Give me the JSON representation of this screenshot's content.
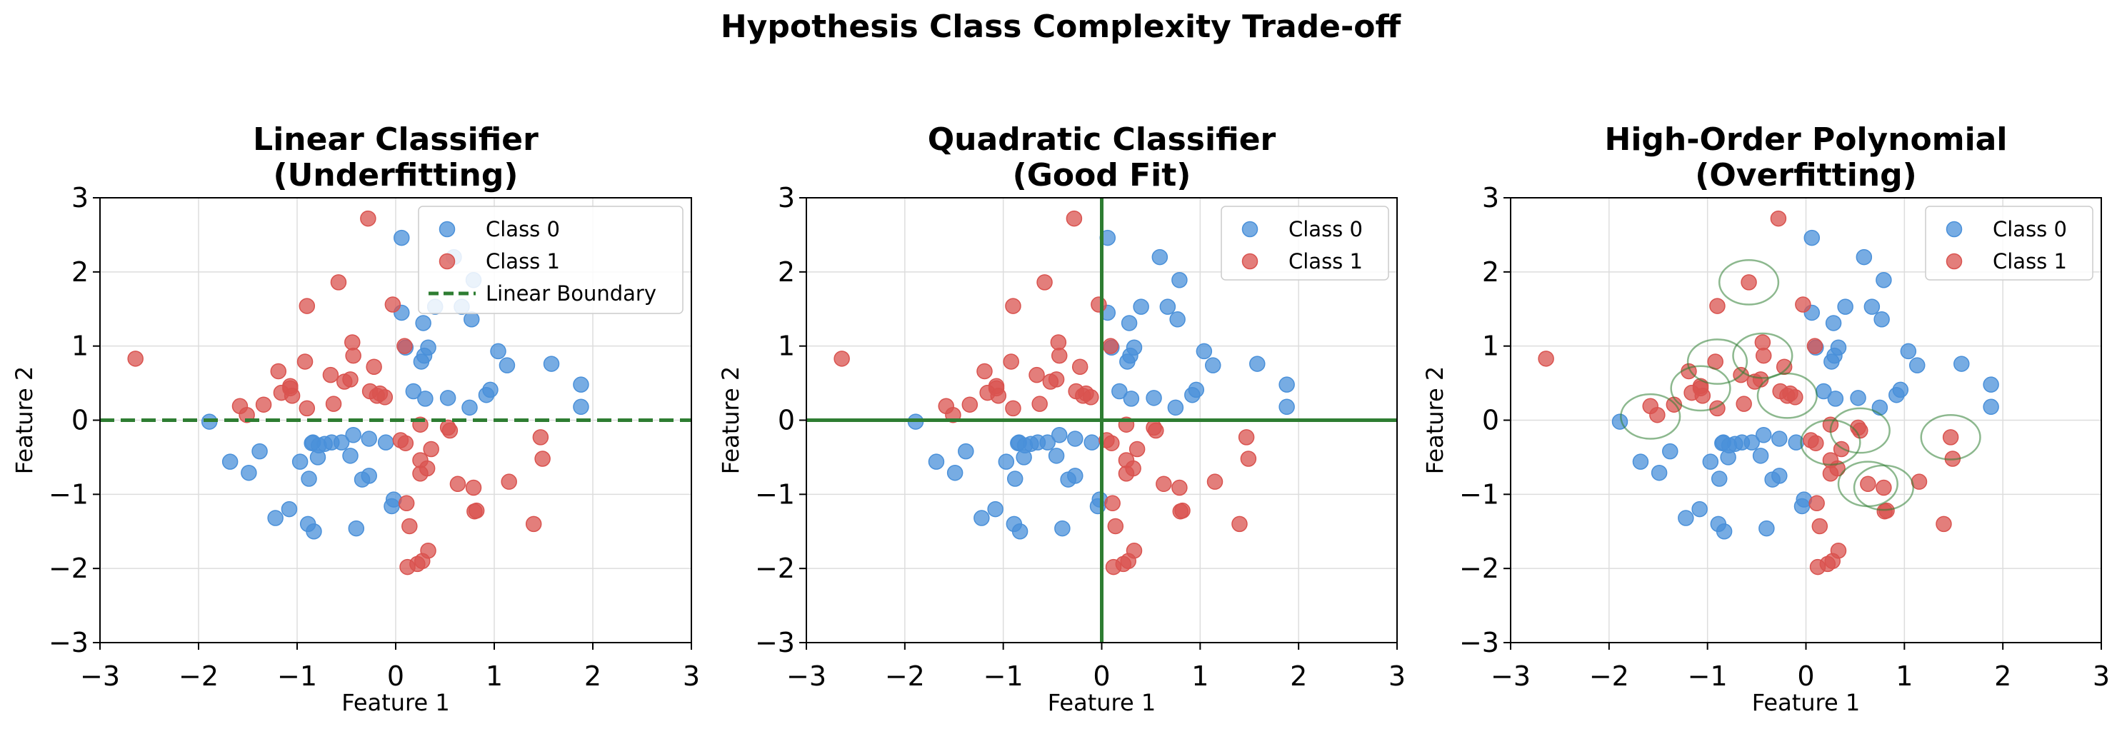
{
  "figure_title": "Hypothesis Class Complexity Trade-off",
  "colors": {
    "class0": "#4a90d9",
    "class1": "#d9534f",
    "boundary": "#2e7d32",
    "grid": "#dddddd"
  },
  "points": {
    "class0": [
      [
        0.06,
        2.46
      ],
      [
        0.59,
        2.2
      ],
      [
        0.79,
        1.89
      ],
      [
        0.67,
        1.53
      ],
      [
        0.4,
        1.53
      ],
      [
        0.06,
        1.45
      ],
      [
        0.28,
        1.31
      ],
      [
        0.77,
        1.36
      ],
      [
        0.33,
        0.98
      ],
      [
        0.1,
        0.98
      ],
      [
        1.04,
        0.93
      ],
      [
        0.29,
        0.87
      ],
      [
        0.26,
        0.79
      ],
      [
        1.13,
        0.74
      ],
      [
        1.58,
        0.76
      ],
      [
        1.88,
        0.48
      ],
      [
        0.96,
        0.41
      ],
      [
        0.92,
        0.34
      ],
      [
        0.18,
        0.39
      ],
      [
        0.3,
        0.29
      ],
      [
        0.53,
        0.3
      ],
      [
        0.75,
        0.17
      ],
      [
        1.88,
        0.18
      ],
      [
        -1.89,
        -0.02
      ],
      [
        -0.84,
        -0.3
      ],
      [
        -0.65,
        -0.3
      ],
      [
        -0.43,
        -0.2
      ],
      [
        -0.27,
        -0.25
      ],
      [
        -0.85,
        -0.31
      ],
      [
        -0.78,
        -0.34
      ],
      [
        -0.72,
        -0.32
      ],
      [
        -0.55,
        -0.3
      ],
      [
        -0.1,
        -0.3
      ],
      [
        -1.38,
        -0.42
      ],
      [
        -0.46,
        -0.48
      ],
      [
        -0.79,
        -0.5
      ],
      [
        -0.97,
        -0.56
      ],
      [
        -1.68,
        -0.56
      ],
      [
        -1.49,
        -0.71
      ],
      [
        -0.27,
        -0.75
      ],
      [
        -0.34,
        -0.8
      ],
      [
        -0.88,
        -0.79
      ],
      [
        -0.02,
        -1.07
      ],
      [
        -0.04,
        -1.16
      ],
      [
        -1.08,
        -1.2
      ],
      [
        -1.22,
        -1.32
      ],
      [
        -0.89,
        -1.4
      ],
      [
        -0.83,
        -1.5
      ],
      [
        -0.4,
        -1.46
      ]
    ],
    "class1": [
      [
        -0.28,
        2.72
      ],
      [
        -0.58,
        1.86
      ],
      [
        -0.03,
        1.56
      ],
      [
        -0.9,
        1.54
      ],
      [
        -0.44,
        1.05
      ],
      [
        0.09,
        1.0
      ],
      [
        -0.43,
        0.87
      ],
      [
        -0.92,
        0.79
      ],
      [
        -0.22,
        0.72
      ],
      [
        -1.19,
        0.66
      ],
      [
        -0.66,
        0.61
      ],
      [
        -2.64,
        0.83
      ],
      [
        -1.07,
        0.46
      ],
      [
        -1.07,
        0.43
      ],
      [
        -0.46,
        0.55
      ],
      [
        -0.52,
        0.52
      ],
      [
        -1.16,
        0.37
      ],
      [
        -0.26,
        0.39
      ],
      [
        -0.16,
        0.36
      ],
      [
        -0.19,
        0.33
      ],
      [
        -0.11,
        0.31
      ],
      [
        -1.05,
        0.33
      ],
      [
        -0.63,
        0.22
      ],
      [
        -1.34,
        0.21
      ],
      [
        -0.9,
        0.16
      ],
      [
        -1.58,
        0.19
      ],
      [
        -1.51,
        0.07
      ],
      [
        0.25,
        -0.06
      ],
      [
        0.53,
        -0.1
      ],
      [
        0.55,
        -0.14
      ],
      [
        0.05,
        -0.27
      ],
      [
        0.36,
        -0.39
      ],
      [
        0.1,
        -0.31
      ],
      [
        1.47,
        -0.23
      ],
      [
        1.49,
        -0.52
      ],
      [
        0.25,
        -0.54
      ],
      [
        0.32,
        -0.65
      ],
      [
        0.25,
        -0.72
      ],
      [
        0.63,
        -0.86
      ],
      [
        1.15,
        -0.83
      ],
      [
        0.79,
        -0.91
      ],
      [
        0.8,
        -1.23
      ],
      [
        0.82,
        -1.22
      ],
      [
        0.11,
        -1.12
      ],
      [
        0.14,
        -1.43
      ],
      [
        1.4,
        -1.4
      ],
      [
        0.33,
        -1.76
      ],
      [
        0.27,
        -1.9
      ],
      [
        0.22,
        -1.94
      ],
      [
        0.12,
        -1.98
      ]
    ]
  },
  "chart_data": [
    {
      "type": "scatter",
      "title": "Linear Classifier\n(Underfitting)",
      "title_lines": [
        "Linear Classifier",
        "(Underfitting)"
      ],
      "xlabel": "Feature 1",
      "ylabel": "Feature 2",
      "xlim": [
        -3,
        3
      ],
      "ylim": [
        -3,
        3
      ],
      "xticks": [
        -3,
        -2,
        -1,
        0,
        1,
        2,
        3
      ],
      "yticks": [
        -3,
        -2,
        -1,
        0,
        1,
        2,
        3
      ],
      "xtick_labels": [
        "−3",
        "−2",
        "−1",
        "0",
        "1",
        "2",
        "3"
      ],
      "ytick_labels": [
        "−3",
        "−2",
        "−1",
        "0",
        "1",
        "2",
        "3"
      ],
      "grid": true,
      "legend_position": "top-right",
      "series": [
        {
          "name": "Class 0",
          "points_ref": "class0",
          "color": "#4a90d9"
        },
        {
          "name": "Class 1",
          "points_ref": "class1",
          "color": "#d9534f"
        }
      ],
      "boundary": {
        "kind": "horizontal-line",
        "y": 0,
        "style": "dashed",
        "label": "Linear Boundary"
      }
    },
    {
      "type": "scatter",
      "title": "Quadratic Classifier\n(Good Fit)",
      "title_lines": [
        "Quadratic Classifier",
        "(Good Fit)"
      ],
      "xlabel": "Feature 1",
      "ylabel": "Feature 2",
      "xlim": [
        -3,
        3
      ],
      "ylim": [
        -3,
        3
      ],
      "xticks": [
        -3,
        -2,
        -1,
        0,
        1,
        2,
        3
      ],
      "yticks": [
        -3,
        -2,
        -1,
        0,
        1,
        2,
        3
      ],
      "xtick_labels": [
        "−3",
        "−2",
        "−1",
        "0",
        "1",
        "2",
        "3"
      ],
      "ytick_labels": [
        "−3",
        "−2",
        "−1",
        "0",
        "1",
        "2",
        "3"
      ],
      "grid": true,
      "legend_position": "top-right",
      "series": [
        {
          "name": "Class 0",
          "points_ref": "class0",
          "color": "#4a90d9"
        },
        {
          "name": "Class 1",
          "points_ref": "class1",
          "color": "#d9534f"
        }
      ],
      "boundary": {
        "kind": "axes-cross",
        "x": 0,
        "y": 0,
        "style": "solid"
      }
    },
    {
      "type": "scatter",
      "title": "High-Order Polynomial\n(Overfitting)",
      "title_lines": [
        "High-Order Polynomial",
        "(Overfitting)"
      ],
      "xlabel": "Feature 1",
      "ylabel": "Feature 2",
      "xlim": [
        -3,
        3
      ],
      "ylim": [
        -3,
        3
      ],
      "xticks": [
        -3,
        -2,
        -1,
        0,
        1,
        2,
        3
      ],
      "yticks": [
        -3,
        -2,
        -1,
        0,
        1,
        2,
        3
      ],
      "xtick_labels": [
        "−3",
        "−2",
        "−1",
        "0",
        "1",
        "2",
        "3"
      ],
      "ytick_labels": [
        "−3",
        "−2",
        "−1",
        "0",
        "1",
        "2",
        "3"
      ],
      "grid": true,
      "legend_position": "top-right",
      "series": [
        {
          "name": "Class 0",
          "points_ref": "class0",
          "color": "#4a90d9"
        },
        {
          "name": "Class 1",
          "points_ref": "class1",
          "color": "#d9534f"
        }
      ],
      "boundary": {
        "kind": "circles",
        "radius": 0.3,
        "centers": [
          [
            -0.58,
            1.86
          ],
          [
            -0.9,
            0.79
          ],
          [
            -0.44,
            0.87
          ],
          [
            -1.07,
            0.43
          ],
          [
            -0.19,
            0.33
          ],
          [
            -1.58,
            0.05
          ],
          [
            0.25,
            -0.3
          ],
          [
            0.55,
            -0.14
          ],
          [
            1.47,
            -0.23
          ],
          [
            0.63,
            -0.86
          ],
          [
            0.79,
            -0.91
          ]
        ]
      }
    }
  ]
}
